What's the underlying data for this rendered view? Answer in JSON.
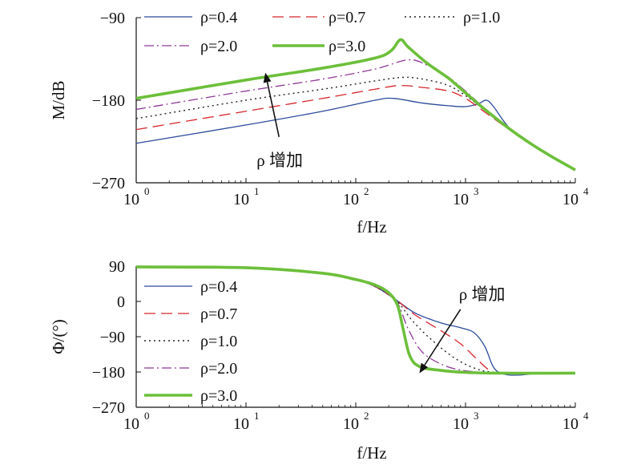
{
  "chart_data": [
    {
      "type": "line",
      "panel": "magnitude",
      "xlabel": "f/Hz",
      "ylabel": "M/dB",
      "x_scale": "log",
      "xlim": [
        1,
        10000
      ],
      "ylim": [
        -270,
        -90
      ],
      "x_ticks": [
        {
          "base": "10",
          "exp": "0",
          "value": 1
        },
        {
          "base": "10",
          "exp": "1",
          "value": 10
        },
        {
          "base": "10",
          "exp": "2",
          "value": 100
        },
        {
          "base": "10",
          "exp": "3",
          "value": 1000
        },
        {
          "base": "10",
          "exp": "4",
          "value": 10000
        }
      ],
      "y_ticks": [
        {
          "label": "−90",
          "value": -90
        },
        {
          "label": "−180",
          "value": -180
        },
        {
          "label": "−270",
          "value": -270
        }
      ],
      "grid": false,
      "legend_placement": "top",
      "annotation": {
        "text": "ρ 增加",
        "from": [
          20,
          -220
        ],
        "to": [
          15,
          -150
        ]
      },
      "series": [
        {
          "name": "ρ=0.4",
          "color": "#2b4a9b",
          "style": "solid",
          "width": 1.3,
          "points": [
            [
              1,
              -227
            ],
            [
              10,
              -207
            ],
            [
              50,
              -192
            ],
            [
              150,
              -180
            ],
            [
              220,
              -178
            ],
            [
              400,
              -183
            ],
            [
              700,
              -186
            ],
            [
              1000,
              -187
            ],
            [
              1300,
              -184
            ],
            [
              1550,
              -180
            ],
            [
              1800,
              -187
            ],
            [
              2500,
              -210
            ],
            [
              4000,
              -228
            ],
            [
              6000,
              -241
            ],
            [
              10000,
              -256
            ]
          ]
        },
        {
          "name": "ρ=0.7",
          "color": "#d6262c",
          "style": "dashed",
          "width": 1.3,
          "points": [
            [
              1,
              -212
            ],
            [
              10,
              -192
            ],
            [
              50,
              -178
            ],
            [
              150,
              -168
            ],
            [
              250,
              -164
            ],
            [
              400,
              -166
            ],
            [
              700,
              -170
            ],
            [
              1000,
              -178
            ],
            [
              1500,
              -193
            ],
            [
              2500,
              -212
            ],
            [
              4000,
              -228
            ],
            [
              6000,
              -241
            ],
            [
              10000,
              -256
            ]
          ]
        },
        {
          "name": "ρ=1.0",
          "color": "#222222",
          "style": "dotted",
          "width": 1.4,
          "points": [
            [
              1,
              -200
            ],
            [
              10,
              -180
            ],
            [
              50,
              -168
            ],
            [
              150,
              -159
            ],
            [
              280,
              -155
            ],
            [
              450,
              -158
            ],
            [
              700,
              -164
            ],
            [
              1000,
              -175
            ],
            [
              1500,
              -191
            ],
            [
              2500,
              -212
            ],
            [
              4000,
              -228
            ],
            [
              6000,
              -241
            ],
            [
              10000,
              -256
            ]
          ]
        },
        {
          "name": "ρ=2.0",
          "color": "#8e3b98",
          "style": "dashdot",
          "width": 1.3,
          "points": [
            [
              1,
              -190
            ],
            [
              10,
              -170
            ],
            [
              50,
              -157
            ],
            [
              150,
              -146
            ],
            [
              300,
              -136
            ],
            [
              450,
              -142
            ],
            [
              700,
              -155
            ],
            [
              1000,
              -170
            ],
            [
              1500,
              -189
            ],
            [
              2500,
              -211
            ],
            [
              4000,
              -228
            ],
            [
              6000,
              -241
            ],
            [
              10000,
              -256
            ]
          ]
        },
        {
          "name": "ρ=3.0",
          "color": "#6cbf3a",
          "style": "solid",
          "width": 3.6,
          "points": [
            [
              1,
              -178
            ],
            [
              10,
              -158
            ],
            [
              50,
              -145
            ],
            [
              150,
              -134
            ],
            [
              210,
              -126
            ],
            [
              255,
              -114
            ],
            [
              300,
              -122
            ],
            [
              450,
              -140
            ],
            [
              700,
              -156
            ],
            [
              1000,
              -172
            ],
            [
              1500,
              -190
            ],
            [
              2500,
              -211
            ],
            [
              4000,
              -228
            ],
            [
              6000,
              -241
            ],
            [
              10000,
              -256
            ]
          ]
        }
      ]
    },
    {
      "type": "line",
      "panel": "phase",
      "xlabel": "f/Hz",
      "ylabel": "Φ/(°)",
      "x_scale": "log",
      "xlim": [
        1,
        10000
      ],
      "ylim": [
        -270,
        90
      ],
      "x_ticks": [
        {
          "base": "10",
          "exp": "0",
          "value": 1
        },
        {
          "base": "10",
          "exp": "1",
          "value": 10
        },
        {
          "base": "10",
          "exp": "2",
          "value": 100
        },
        {
          "base": "10",
          "exp": "3",
          "value": 1000
        },
        {
          "base": "10",
          "exp": "4",
          "value": 10000
        }
      ],
      "y_ticks": [
        {
          "label": "90",
          "value": 90
        },
        {
          "label": "0",
          "value": 0
        },
        {
          "label": "−90",
          "value": -90
        },
        {
          "label": "−180",
          "value": -180
        },
        {
          "label": "−270",
          "value": -270
        }
      ],
      "grid": false,
      "legend_placement": "left",
      "annotation": {
        "text": "ρ 增加",
        "from": [
          900,
          -20
        ],
        "to": [
          380,
          -183
        ]
      },
      "series": [
        {
          "name": "ρ=0.4",
          "color": "#2b4a9b",
          "style": "solid",
          "width": 1.3,
          "points": [
            [
              1,
              88
            ],
            [
              10,
              86
            ],
            [
              50,
              70
            ],
            [
              100,
              55
            ],
            [
              150,
              38
            ],
            [
              230,
              5
            ],
            [
              350,
              -30
            ],
            [
              600,
              -55
            ],
            [
              900,
              -67
            ],
            [
              1200,
              -80
            ],
            [
              1500,
              -115
            ],
            [
              1800,
              -168
            ],
            [
              2200,
              -185
            ],
            [
              3000,
              -188
            ],
            [
              5000,
              -183
            ],
            [
              10000,
              -183
            ]
          ]
        },
        {
          "name": "ρ=0.7",
          "color": "#d6262c",
          "style": "dashed",
          "width": 1.3,
          "points": [
            [
              1,
              88
            ],
            [
              10,
              86
            ],
            [
              50,
              70
            ],
            [
              100,
              55
            ],
            [
              150,
              38
            ],
            [
              230,
              5
            ],
            [
              350,
              -35
            ],
            [
              600,
              -75
            ],
            [
              900,
              -108
            ],
            [
              1300,
              -150
            ],
            [
              1700,
              -178
            ],
            [
              2200,
              -184
            ],
            [
              5000,
              -183
            ],
            [
              10000,
              -183
            ]
          ]
        },
        {
          "name": "ρ=1.0",
          "color": "#222222",
          "style": "dotted",
          "width": 1.4,
          "points": [
            [
              1,
              88
            ],
            [
              10,
              86
            ],
            [
              50,
              70
            ],
            [
              100,
              55
            ],
            [
              150,
              38
            ],
            [
              230,
              5
            ],
            [
              330,
              -50
            ],
            [
              500,
              -100
            ],
            [
              800,
              -145
            ],
            [
              1200,
              -170
            ],
            [
              1700,
              -180
            ],
            [
              3000,
              -183
            ],
            [
              10000,
              -183
            ]
          ]
        },
        {
          "name": "ρ=2.0",
          "color": "#8e3b98",
          "style": "dashdot",
          "width": 1.3,
          "points": [
            [
              1,
              88
            ],
            [
              10,
              86
            ],
            [
              50,
              70
            ],
            [
              100,
              55
            ],
            [
              150,
              38
            ],
            [
              230,
              5
            ],
            [
              300,
              -70
            ],
            [
              400,
              -128
            ],
            [
              600,
              -160
            ],
            [
              900,
              -175
            ],
            [
              1500,
              -181
            ],
            [
              3000,
              -183
            ],
            [
              10000,
              -183
            ]
          ]
        },
        {
          "name": "ρ=3.0",
          "color": "#6cbf3a",
          "style": "solid",
          "width": 3.6,
          "points": [
            [
              1,
              88
            ],
            [
              10,
              86
            ],
            [
              50,
              72
            ],
            [
              100,
              56
            ],
            [
              150,
              42
            ],
            [
              200,
              22
            ],
            [
              240,
              -10
            ],
            [
              270,
              -70
            ],
            [
              310,
              -138
            ],
            [
              380,
              -166
            ],
            [
              600,
              -176
            ],
            [
              1000,
              -181
            ],
            [
              2000,
              -183
            ],
            [
              10000,
              -183
            ]
          ]
        }
      ]
    }
  ]
}
